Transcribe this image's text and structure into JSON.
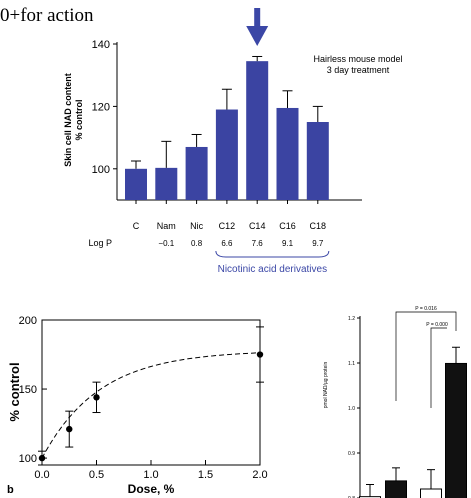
{
  "heading": "0+for action",
  "chart_data": [
    {
      "type": "bar",
      "categories": [
        "C",
        "Nam",
        "Nic",
        "C12",
        "C14",
        "C16",
        "C18"
      ],
      "logp_label": "Log P",
      "logp": [
        "",
        "−0.1",
        "0.8",
        "6.6",
        "7.6",
        "9.1",
        "9.7"
      ],
      "values": [
        100,
        100.3,
        107,
        119,
        134.5,
        119.5,
        115
      ],
      "errors": [
        2.5,
        8.5,
        4,
        6.5,
        1.5,
        5.5,
        5
      ],
      "ylabel": "Skin cell NAD content\n% control",
      "ylim": [
        90,
        140
      ],
      "yticks": [
        100,
        120,
        140
      ],
      "annotation": "Hairless mouse model\n3 day treatment",
      "group_label": "Nicotinic acid derivatives",
      "highlight_category": "C14",
      "bar_color": "#3b44a2",
      "accent_color": "#3b47a6"
    },
    {
      "type": "line",
      "panel_label": "b",
      "x": [
        0,
        0.25,
        0.5,
        2.0
      ],
      "y": [
        100,
        121,
        144,
        175
      ],
      "yerr": [
        5,
        13,
        11,
        20
      ],
      "xlabel": "Dose, %",
      "ylabel": "% control",
      "xlim": [
        0,
        2.0
      ],
      "ylim": [
        95,
        200
      ],
      "xticks": [
        "0.0",
        "0.5",
        "1.0",
        "1.5",
        "2.0"
      ],
      "yticks": [
        "100",
        "150",
        "200"
      ]
    },
    {
      "type": "bar",
      "ylabel": "pmol NAD/µg protein",
      "ylim": [
        0.8,
        1.2
      ],
      "yticks": [
        "1.2",
        "1.1",
        "1.0",
        "0.9",
        "0.8"
      ],
      "values": [
        0.803,
        0.838,
        0.82,
        1.099
      ],
      "errors": [
        0.027,
        0.029,
        0.043,
        0.036
      ],
      "fills": [
        "white",
        "black",
        "white",
        "black"
      ],
      "significance": [
        "P = 0.016",
        "P = 0.000"
      ]
    }
  ]
}
